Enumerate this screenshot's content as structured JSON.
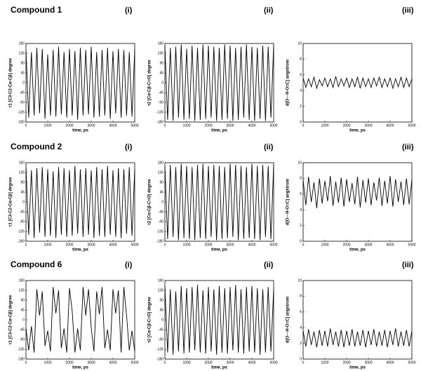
{
  "chart_data": [
    {
      "type": "line",
      "title": "Compound 1",
      "panel": "(i)",
      "ylabel": "τ1 [C3-C2-Cα-Cβ] degree",
      "xlabel": "time, ps",
      "x": [
        0,
        125,
        250,
        375,
        500,
        625,
        750,
        875,
        1000,
        1125,
        1250,
        1375,
        1500,
        1625,
        1750,
        1875,
        2000,
        2125,
        2250,
        2375,
        2500,
        2625,
        2750,
        2875,
        3000,
        3125,
        3250,
        3375,
        3500,
        3625,
        3750,
        3875,
        4000,
        4125,
        4250,
        4375,
        4500,
        4625,
        4750,
        4875,
        5000
      ],
      "values": [
        150,
        -160,
        140,
        -150,
        160,
        -140,
        155,
        -165,
        130,
        -150,
        150,
        -155,
        165,
        -145,
        140,
        -160,
        155,
        -150,
        145,
        -170,
        160,
        -150,
        150,
        -145,
        165,
        -160,
        140,
        -155,
        150,
        -150,
        160,
        -165,
        145,
        -140,
        155,
        -160,
        150,
        -150,
        140,
        -155,
        150
      ],
      "color": "#000000",
      "xlim": [
        0,
        5000
      ],
      "ylim": [
        -180,
        180
      ],
      "xticks": [
        0,
        1000,
        2000,
        3000,
        4000,
        5000
      ],
      "yticks": [
        -180,
        -135,
        -90,
        -45,
        0,
        45,
        90,
        135,
        180
      ]
    },
    {
      "type": "line",
      "panel": "(ii)",
      "ylabel": "τ2 [Cα-Cβ-C=O] degree",
      "xlabel": "time, ps",
      "x": [
        0,
        125,
        250,
        375,
        500,
        625,
        750,
        875,
        1000,
        1125,
        1250,
        1375,
        1500,
        1625,
        1750,
        1875,
        2000,
        2125,
        2250,
        2375,
        2500,
        2625,
        2750,
        2875,
        3000,
        3125,
        3250,
        3375,
        3500,
        3625,
        3750,
        3875,
        4000,
        4125,
        4250,
        4375,
        4500,
        4625,
        4750,
        4875,
        5000
      ],
      "values": [
        170,
        -170,
        160,
        -175,
        165,
        -160,
        175,
        -170,
        155,
        -165,
        170,
        -175,
        160,
        -170,
        175,
        -165,
        170,
        -160,
        165,
        -175,
        160,
        -170,
        175,
        -165,
        170,
        -175,
        160,
        -170,
        165,
        -160,
        175,
        -170,
        165,
        -175,
        160,
        -165,
        170,
        -175,
        165,
        -160,
        170
      ],
      "color": "#000000",
      "xlim": [
        0,
        5000
      ],
      "ylim": [
        -180,
        180
      ],
      "xticks": [
        0,
        1000,
        2000,
        3000,
        4000,
        5000
      ],
      "yticks": [
        -180,
        -135,
        -90,
        -45,
        0,
        45,
        90,
        135,
        180
      ]
    },
    {
      "type": "line",
      "panel": "(iii)",
      "ylabel": "d[O···H-O=C] angstrom",
      "xlabel": "time, ps",
      "x": [
        0,
        125,
        250,
        375,
        500,
        625,
        750,
        875,
        1000,
        1125,
        1250,
        1375,
        1500,
        1625,
        1750,
        1875,
        2000,
        2125,
        2250,
        2375,
        2500,
        2625,
        2750,
        2875,
        3000,
        3125,
        3250,
        3375,
        3500,
        3625,
        3750,
        3875,
        4000,
        4125,
        4250,
        4375,
        4500,
        4625,
        4750,
        4875,
        5000
      ],
      "values": [
        5.6,
        4.4,
        5.5,
        4.5,
        5.7,
        4.3,
        5.4,
        4.6,
        5.6,
        4.5,
        5.5,
        4.4,
        5.8,
        4.5,
        5.5,
        4.6,
        5.6,
        4.4,
        5.5,
        4.5,
        5.7,
        4.3,
        5.6,
        4.5,
        5.5,
        4.4,
        5.6,
        4.6,
        5.7,
        4.4,
        5.5,
        4.5,
        5.6,
        4.3,
        5.5,
        4.5,
        5.7,
        4.4,
        5.6,
        4.5,
        5.5
      ],
      "color": "#000000",
      "xlim": [
        0,
        5000
      ],
      "ylim": [
        0,
        10
      ],
      "xticks": [
        0,
        1000,
        2000,
        3000,
        4000,
        5000
      ],
      "yticks": [
        0,
        2,
        4,
        6,
        8,
        10
      ]
    },
    {
      "type": "line",
      "title": "Compound 2",
      "panel": "(i)",
      "ylabel": "τ1 [C3-C2-Cα-Cβ] degree",
      "xlabel": "time, ps",
      "x": [
        0,
        125,
        250,
        375,
        500,
        625,
        750,
        875,
        1000,
        1125,
        1250,
        1375,
        1500,
        1625,
        1750,
        1875,
        2000,
        2125,
        2250,
        2375,
        2500,
        2625,
        2750,
        2875,
        3000,
        3125,
        3250,
        3375,
        3500,
        3625,
        3750,
        3875,
        4000,
        4125,
        4250,
        4375,
        4500,
        4625,
        4750,
        4875,
        5000
      ],
      "values": [
        160,
        -150,
        145,
        -165,
        155,
        -140,
        160,
        -160,
        150,
        -155,
        140,
        -165,
        160,
        -150,
        155,
        -160,
        145,
        -155,
        165,
        -145,
        150,
        -160,
        155,
        -150,
        145,
        -165,
        160,
        -155,
        150,
        -160,
        165,
        -150,
        145,
        -160,
        155,
        -165,
        150,
        -145,
        160,
        -155,
        150
      ],
      "color": "#000000",
      "xlim": [
        0,
        5000
      ],
      "ylim": [
        -180,
        180
      ],
      "xticks": [
        0,
        1000,
        2000,
        3000,
        4000,
        5000
      ],
      "yticks": [
        -180,
        -135,
        -90,
        -45,
        0,
        45,
        90,
        135,
        180
      ]
    },
    {
      "type": "line",
      "panel": "(ii)",
      "ylabel": "τ2 [Cα-Cβ-C=O] degree",
      "xlabel": "time, ps",
      "x": [
        0,
        125,
        250,
        375,
        500,
        625,
        750,
        875,
        1000,
        1125,
        1250,
        1375,
        1500,
        1625,
        1750,
        1875,
        2000,
        2125,
        2250,
        2375,
        2500,
        2625,
        2750,
        2875,
        3000,
        3125,
        3250,
        3375,
        3500,
        3625,
        3750,
        3875,
        4000,
        4125,
        4250,
        4375,
        4500,
        4625,
        4750,
        4875,
        5000
      ],
      "values": [
        165,
        -170,
        170,
        -160,
        160,
        -175,
        175,
        -165,
        165,
        -170,
        160,
        -175,
        170,
        -165,
        175,
        -170,
        165,
        -160,
        170,
        -175,
        165,
        -170,
        160,
        -165,
        175,
        -160,
        170,
        -175,
        165,
        -170,
        160,
        -165,
        175,
        -170,
        165,
        -175,
        170,
        -160,
        165,
        -170,
        170
      ],
      "color": "#000000",
      "xlim": [
        0,
        5000
      ],
      "ylim": [
        -180,
        180
      ],
      "xticks": [
        0,
        1000,
        2000,
        3000,
        4000,
        5000
      ],
      "yticks": [
        -180,
        -135,
        -90,
        -45,
        0,
        45,
        90,
        135,
        180
      ]
    },
    {
      "type": "line",
      "panel": "(iii)",
      "ylabel": "d[O···H-O=C] angstrom",
      "xlabel": "time, ps",
      "x": [
        0,
        125,
        250,
        375,
        500,
        625,
        750,
        875,
        1000,
        1125,
        1250,
        1375,
        1500,
        1625,
        1750,
        1875,
        2000,
        2125,
        2250,
        2375,
        2500,
        2625,
        2750,
        2875,
        3000,
        3125,
        3250,
        3375,
        3500,
        3625,
        3750,
        3875,
        4000,
        4125,
        4250,
        4375,
        4500,
        4625,
        4750,
        4875,
        5000
      ],
      "values": [
        7.8,
        4.6,
        8.2,
        5.0,
        7.5,
        4.2,
        8.0,
        4.8,
        7.7,
        5.1,
        8.3,
        4.5,
        7.6,
        4.9,
        8.1,
        4.4,
        7.9,
        5.0,
        7.4,
        4.7,
        8.2,
        4.3,
        7.8,
        4.9,
        8.0,
        4.6,
        7.5,
        5.2,
        8.1,
        4.5,
        7.7,
        4.8,
        8.3,
        4.4,
        7.9,
        5.0,
        7.6,
        4.6,
        8.0,
        4.7,
        7.8
      ],
      "color": "#000000",
      "xlim": [
        0,
        5000
      ],
      "ylim": [
        0,
        10
      ],
      "xticks": [
        0,
        1000,
        2000,
        3000,
        4000,
        5000
      ],
      "yticks": [
        0,
        2,
        4,
        6,
        8,
        10
      ]
    },
    {
      "type": "line",
      "title": "Compound 6",
      "panel": "(i)",
      "ylabel": "τ1 [C3-C2-Cα-Cβ] degree",
      "xlabel": "time, ps",
      "x": [
        0,
        125,
        250,
        375,
        500,
        625,
        750,
        875,
        1000,
        1125,
        1250,
        1375,
        1500,
        1625,
        1750,
        1875,
        2000,
        2125,
        2250,
        2375,
        2500,
        2625,
        2750,
        2875,
        3000,
        3125,
        3250,
        3375,
        3500,
        3625,
        3750,
        3875,
        4000,
        4125,
        4250,
        4375,
        4500,
        4625,
        4750,
        4875,
        5000
      ],
      "values": [
        -40,
        -140,
        -30,
        -150,
        140,
        20,
        130,
        -120,
        -50,
        -145,
        150,
        30,
        135,
        -130,
        -40,
        -150,
        145,
        40,
        -150,
        -40,
        -140,
        150,
        20,
        140,
        -35,
        -145,
        130,
        25,
        150,
        -130,
        -45,
        -140,
        140,
        30,
        135,
        -150,
        150,
        20,
        -140,
        -50,
        -145
      ],
      "color": "#000000",
      "xlim": [
        0,
        5000
      ],
      "ylim": [
        -180,
        180
      ],
      "xticks": [
        0,
        1000,
        2000,
        3000,
        4000,
        5000
      ],
      "yticks": [
        -180,
        -135,
        -90,
        -45,
        0,
        45,
        90,
        135,
        180
      ]
    },
    {
      "type": "line",
      "panel": "(ii)",
      "ylabel": "τ2 [Cα-Cβ-C=O] degree",
      "xlabel": "time, ps",
      "x": [
        0,
        125,
        250,
        375,
        500,
        625,
        750,
        875,
        1000,
        1125,
        1250,
        1375,
        1500,
        1625,
        1750,
        1875,
        2000,
        2125,
        2250,
        2375,
        2500,
        2625,
        2750,
        2875,
        3000,
        3125,
        3250,
        3375,
        3500,
        3625,
        3750,
        3875,
        4000,
        4125,
        4250,
        4375,
        4500,
        4625,
        4750,
        4875,
        5000
      ],
      "values": [
        150,
        -150,
        140,
        -160,
        130,
        -145,
        155,
        -155,
        145,
        -150,
        150,
        -140,
        160,
        -150,
        135,
        -155,
        150,
        -145,
        140,
        -160,
        155,
        -150,
        145,
        -155,
        150,
        -140,
        160,
        -150,
        140,
        -155,
        150,
        -145,
        155,
        -150,
        145,
        -160,
        140,
        -150,
        150,
        -145,
        140
      ],
      "color": "#000000",
      "xlim": [
        0,
        5000
      ],
      "ylim": [
        -180,
        180
      ],
      "xticks": [
        0,
        1000,
        2000,
        3000,
        4000,
        5000
      ],
      "yticks": [
        -180,
        -135,
        -90,
        -45,
        0,
        45,
        90,
        135,
        180
      ]
    },
    {
      "type": "line",
      "panel": "(iii)",
      "ylabel": "d[O···H-O=C] angstrom",
      "xlabel": "time, ps",
      "x": [
        0,
        125,
        250,
        375,
        500,
        625,
        750,
        875,
        1000,
        1125,
        1250,
        1375,
        1500,
        1625,
        1750,
        1875,
        2000,
        2125,
        2250,
        2375,
        2500,
        2625,
        2750,
        2875,
        3000,
        3125,
        3250,
        3375,
        3500,
        3625,
        3750,
        3875,
        4000,
        4125,
        4250,
        4375,
        4500,
        4625,
        4750,
        4875,
        5000
      ],
      "values": [
        3.6,
        1.6,
        3.8,
        1.8,
        3.5,
        1.5,
        3.7,
        1.7,
        3.6,
        1.6,
        3.9,
        1.8,
        3.5,
        1.6,
        3.7,
        1.5,
        3.6,
        1.7,
        3.8,
        1.6,
        3.5,
        1.7,
        3.7,
        1.5,
        3.6,
        1.8,
        3.8,
        1.6,
        3.5,
        1.7,
        3.7,
        1.5,
        3.6,
        1.8,
        3.9,
        1.6,
        3.5,
        1.7,
        3.7,
        1.6,
        3.6
      ],
      "color": "#000000",
      "xlim": [
        0,
        5000
      ],
      "ylim": [
        0,
        10
      ],
      "xticks": [
        0,
        1000,
        2000,
        3000,
        4000,
        5000
      ],
      "yticks": [
        0,
        2,
        4,
        6,
        8,
        10
      ]
    }
  ]
}
